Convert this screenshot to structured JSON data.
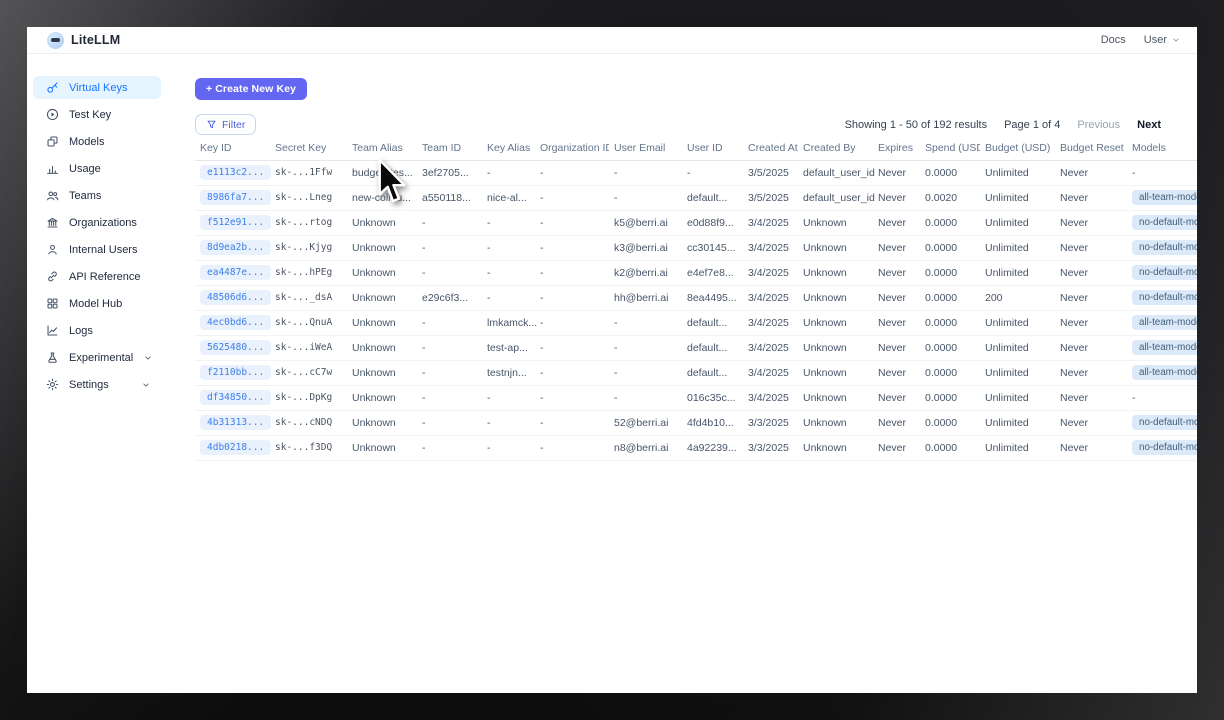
{
  "header": {
    "brand": "LiteLLM",
    "docs_label": "Docs",
    "user_label": "User"
  },
  "sidebar": {
    "items": [
      {
        "label": "Virtual Keys",
        "icon": "key-icon",
        "active": true,
        "chevron": false
      },
      {
        "label": "Test Key",
        "icon": "play-circle-icon",
        "active": false,
        "chevron": false
      },
      {
        "label": "Models",
        "icon": "models-icon",
        "active": false,
        "chevron": false
      },
      {
        "label": "Usage",
        "icon": "bar-chart-icon",
        "active": false,
        "chevron": false
      },
      {
        "label": "Teams",
        "icon": "teams-icon",
        "active": false,
        "chevron": false
      },
      {
        "label": "Organizations",
        "icon": "organization-icon",
        "active": false,
        "chevron": false
      },
      {
        "label": "Internal Users",
        "icon": "user-icon",
        "active": false,
        "chevron": false
      },
      {
        "label": "API Reference",
        "icon": "link-icon",
        "active": false,
        "chevron": false
      },
      {
        "label": "Model Hub",
        "icon": "grid-icon",
        "active": false,
        "chevron": false
      },
      {
        "label": "Logs",
        "icon": "line-chart-icon",
        "active": false,
        "chevron": false
      },
      {
        "label": "Experimental",
        "icon": "flask-icon",
        "active": false,
        "chevron": true
      },
      {
        "label": "Settings",
        "icon": "gear-icon",
        "active": false,
        "chevron": true
      }
    ]
  },
  "toolbar": {
    "create_label": "+ Create New Key",
    "filter_label": "Filter"
  },
  "pagination": {
    "showing": "Showing 1 - 50 of 192 results",
    "page": "Page 1 of 4",
    "previous": "Previous",
    "next": "Next"
  },
  "table": {
    "columns": [
      {
        "id": "key_id",
        "label": "Key ID"
      },
      {
        "id": "secret_key",
        "label": "Secret Key"
      },
      {
        "id": "team_alias",
        "label": "Team Alias"
      },
      {
        "id": "team_id",
        "label": "Team ID"
      },
      {
        "id": "key_alias",
        "label": "Key Alias"
      },
      {
        "id": "organization_id",
        "label": "Organization ID"
      },
      {
        "id": "user_email",
        "label": "User Email"
      },
      {
        "id": "user_id",
        "label": "User ID"
      },
      {
        "id": "created_at",
        "label": "Created At"
      },
      {
        "id": "created_by",
        "label": "Created By"
      },
      {
        "id": "expires",
        "label": "Expires"
      },
      {
        "id": "spend",
        "label": "Spend (USD)"
      },
      {
        "id": "budget",
        "label": "Budget (USD)"
      },
      {
        "id": "budget_reset",
        "label": "Budget Reset"
      },
      {
        "id": "models",
        "label": "Models"
      }
    ],
    "rows": [
      [
        "e1113c2...",
        "sk-...1Ffw",
        "budget_tes...",
        "3ef2705...",
        "-",
        "-",
        "-",
        "-",
        "3/5/2025",
        "default_user_id",
        "Never",
        "0.0000",
        "Unlimited",
        "Never",
        "-"
      ],
      [
        "8986fa7...",
        "sk-...Lneg",
        "new-collou...",
        "a550118...",
        "nice-al...",
        "-",
        "-",
        "default...",
        "3/5/2025",
        "default_user_id",
        "Never",
        "0.0020",
        "Unlimited",
        "Never",
        "all-team-models"
      ],
      [
        "f512e91...",
        "sk-...rtog",
        "Unknown",
        "-",
        "-",
        "-",
        "k5@berri.ai",
        "e0d88f9...",
        "3/4/2025",
        "Unknown",
        "Never",
        "0.0000",
        "Unlimited",
        "Never",
        "no-default-models"
      ],
      [
        "8d9ea2b...",
        "sk-...Kjyg",
        "Unknown",
        "-",
        "-",
        "-",
        "k3@berri.ai",
        "cc30145...",
        "3/4/2025",
        "Unknown",
        "Never",
        "0.0000",
        "Unlimited",
        "Never",
        "no-default-models"
      ],
      [
        "ea4487e...",
        "sk-...hPEg",
        "Unknown",
        "-",
        "-",
        "-",
        "k2@berri.ai",
        "e4ef7e8...",
        "3/4/2025",
        "Unknown",
        "Never",
        "0.0000",
        "Unlimited",
        "Never",
        "no-default-models"
      ],
      [
        "48506d6...",
        "sk-..._dsA",
        "Unknown",
        "e29c6f3...",
        "-",
        "-",
        "hh@berri.ai",
        "8ea4495...",
        "3/4/2025",
        "Unknown",
        "Never",
        "0.0000",
        "200",
        "Never",
        "no-default-models"
      ],
      [
        "4ec0bd6...",
        "sk-...QnuA",
        "Unknown",
        "-",
        "lmkamck...",
        "-",
        "-",
        "default...",
        "3/4/2025",
        "Unknown",
        "Never",
        "0.0000",
        "Unlimited",
        "Never",
        "all-team-models"
      ],
      [
        "5625480...",
        "sk-...iWeA",
        "Unknown",
        "-",
        "test-ap...",
        "-",
        "-",
        "default...",
        "3/4/2025",
        "Unknown",
        "Never",
        "0.0000",
        "Unlimited",
        "Never",
        "all-team-models"
      ],
      [
        "f2110bb...",
        "sk-...cC7w",
        "Unknown",
        "-",
        "testnjn...",
        "-",
        "-",
        "default...",
        "3/4/2025",
        "Unknown",
        "Never",
        "0.0000",
        "Unlimited",
        "Never",
        "all-team-models"
      ],
      [
        "df34850...",
        "sk-...DpKg",
        "Unknown",
        "-",
        "-",
        "-",
        "-",
        "016c35c...",
        "3/4/2025",
        "Unknown",
        "Never",
        "0.0000",
        "Unlimited",
        "Never",
        "-"
      ],
      [
        "4b31313...",
        "sk-...cNDQ",
        "Unknown",
        "-",
        "-",
        "-",
        "52@berri.ai",
        "4fd4b10...",
        "3/3/2025",
        "Unknown",
        "Never",
        "0.0000",
        "Unlimited",
        "Never",
        "no-default-models"
      ],
      [
        "4db0218...",
        "sk-...f3DQ",
        "Unknown",
        "-",
        "-",
        "-",
        "n8@berri.ai",
        "4a92239...",
        "3/3/2025",
        "Unknown",
        "Never",
        "0.0000",
        "Unlimited",
        "Never",
        "no-default-models"
      ]
    ]
  },
  "colors": {
    "accent": "#6366f1",
    "active_item_bg": "#e6f4ff",
    "active_item_text": "#1677ff",
    "key_badge_bg": "#e8f1fc",
    "key_badge_text": "#3f7fe8",
    "model_badge_bg": "#dbe9f9"
  }
}
